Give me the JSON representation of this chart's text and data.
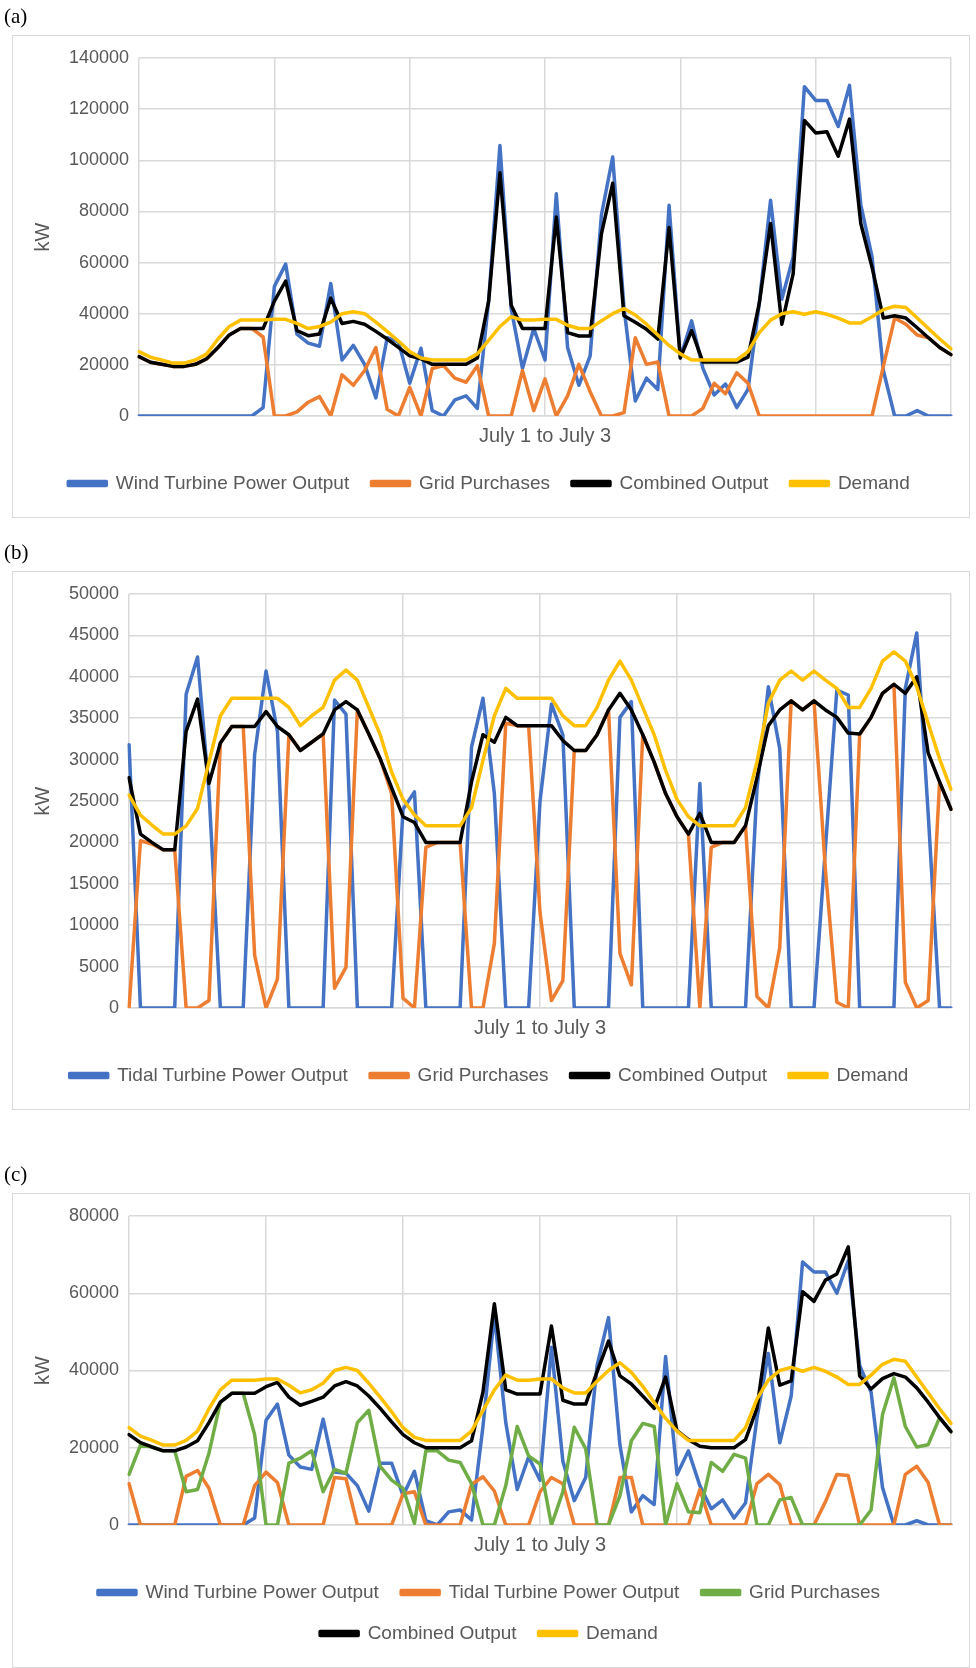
{
  "chart_data": [
    {
      "type": "line",
      "title": "(a)",
      "xlabel": "July 1 to July 3",
      "ylabel": "kW",
      "categories": [
        null,
        null,
        null,
        null,
        null,
        null,
        null,
        null,
        null,
        null,
        null,
        null,
        null,
        null,
        null,
        null,
        null,
        null,
        null,
        null,
        null,
        null,
        null,
        null,
        null,
        null,
        null,
        null,
        null,
        null,
        null,
        null,
        null,
        null,
        null,
        null,
        null,
        null,
        null,
        null,
        null,
        null,
        null,
        null,
        null,
        null,
        null,
        null,
        null,
        null,
        null,
        null,
        null,
        null,
        null,
        null,
        null,
        null,
        null,
        null,
        null,
        null,
        null,
        null,
        null,
        null,
        null,
        null,
        null,
        null,
        null,
        null,
        null
      ],
      "series": [
        {
          "name": "Wind Turbine Power Output",
          "color": "#4472c4",
          "values": [
            0,
            0,
            0,
            0,
            0,
            0,
            0,
            0,
            0,
            0,
            0,
            3300,
            50700,
            59400,
            32000,
            28500,
            27300,
            51800,
            21900,
            27600,
            20200,
            7100,
            30600,
            29000,
            12800,
            26500,
            2100,
            0,
            6300,
            7900,
            3000,
            45000,
            105800,
            42000,
            18600,
            34200,
            21900,
            86900,
            26800,
            12000,
            23500,
            78600,
            101300,
            42400,
            5900,
            14800,
            10400,
            82400,
            22700,
            37200,
            18600,
            8200,
            12500,
            3300,
            10400,
            44100,
            84400,
            45700,
            62200,
            128800,
            123400,
            123400,
            113200,
            129300,
            82700,
            62200,
            17800,
            0,
            0,
            2100,
            0,
            0,
            0
          ]
        },
        {
          "name": "Grid Purchases",
          "color": "#ed7d31",
          "values": [
            23200,
            21000,
            20200,
            19400,
            19400,
            20200,
            22400,
            26800,
            31700,
            34200,
            34200,
            30900,
            0,
            0,
            1600,
            5400,
            7600,
            0,
            16100,
            12000,
            17800,
            26800,
            2600,
            0,
            11200,
            0,
            18600,
            19700,
            14800,
            13200,
            19700,
            0,
            0,
            0,
            17800,
            2100,
            14500,
            0,
            7900,
            20200,
            9500,
            0,
            0,
            1300,
            30600,
            20200,
            21100,
            0,
            0,
            0,
            3000,
            12800,
            8700,
            16900,
            12800,
            0,
            0,
            0,
            0,
            0,
            0,
            0,
            0,
            0,
            0,
            0,
            19400,
            38300,
            35900,
            31700,
            30600,
            26800,
            24000
          ]
        },
        {
          "name": "Combined Output",
          "color": "#000000",
          "values": [
            23200,
            21000,
            20200,
            19400,
            19400,
            20200,
            22400,
            26800,
            31700,
            34200,
            34200,
            34200,
            44900,
            52800,
            33400,
            31400,
            32100,
            46100,
            36200,
            37000,
            35900,
            33100,
            30100,
            26800,
            23500,
            22400,
            20200,
            20200,
            20200,
            20200,
            22700,
            44900,
            95100,
            43300,
            34200,
            34200,
            34200,
            77800,
            32600,
            31300,
            31300,
            71200,
            91000,
            39200,
            36700,
            33900,
            30100,
            73700,
            22700,
            33400,
            21100,
            21100,
            21100,
            21100,
            23000,
            44100,
            75300,
            35900,
            55600,
            115600,
            110700,
            111200,
            101600,
            116100,
            75300,
            58100,
            38300,
            39200,
            38300,
            34500,
            30600,
            26800,
            24000
          ]
        },
        {
          "name": "Demand",
          "color": "#ffc000",
          "values": [
            25200,
            23000,
            21900,
            20700,
            20700,
            21900,
            24300,
            30100,
            35000,
            37500,
            37500,
            37500,
            37800,
            37800,
            36200,
            34200,
            35000,
            36700,
            40000,
            40800,
            40000,
            36700,
            33100,
            29300,
            25200,
            22700,
            21900,
            21900,
            21900,
            21900,
            24300,
            29600,
            35000,
            38800,
            37500,
            37500,
            37800,
            37800,
            35500,
            34200,
            34200,
            37200,
            40000,
            42000,
            39500,
            35900,
            31700,
            27600,
            24300,
            21900,
            21900,
            21900,
            21900,
            21900,
            25200,
            32600,
            37500,
            40000,
            40800,
            39800,
            40800,
            39800,
            38300,
            36400,
            36400,
            38800,
            41600,
            42900,
            42400,
            38300,
            34200,
            30100,
            26300
          ]
        }
      ],
      "ylim": [
        0,
        140000
      ],
      "yticks": [
        0,
        20000,
        40000,
        60000,
        80000,
        100000,
        120000,
        140000
      ],
      "grid": true,
      "legend": "bottom",
      "tick_labels": "y"
    },
    {
      "type": "line",
      "title": "(b)",
      "xlabel": "July 1 to July 3",
      "ylabel": "kW",
      "categories": [
        null,
        null,
        null,
        null,
        null,
        null,
        null,
        null,
        null,
        null,
        null,
        null,
        null,
        null,
        null,
        null,
        null,
        null,
        null,
        null,
        null,
        null,
        null,
        null,
        null,
        null,
        null,
        null,
        null,
        null,
        null,
        null,
        null,
        null,
        null,
        null,
        null,
        null,
        null,
        null,
        null,
        null,
        null,
        null,
        null,
        null,
        null,
        null,
        null,
        null,
        null,
        null,
        null,
        null,
        null,
        null,
        null,
        null,
        null,
        null,
        null,
        null,
        null,
        null,
        null,
        null,
        null,
        null,
        null,
        null,
        null,
        null,
        null
      ],
      "series": [
        {
          "name": "Tidal Turbine Power Output",
          "color": "#4472c4",
          "values": [
            31800,
            0,
            0,
            0,
            0,
            37900,
            42400,
            26200,
            0,
            0,
            0,
            30600,
            40700,
            33400,
            0,
            0,
            0,
            0,
            37200,
            35500,
            0,
            0,
            0,
            0,
            24000,
            26100,
            0,
            0,
            0,
            0,
            31500,
            37400,
            25900,
            0,
            0,
            0,
            25000,
            36700,
            33000,
            0,
            0,
            0,
            0,
            35100,
            37000,
            0,
            0,
            0,
            0,
            0,
            27100,
            0,
            0,
            0,
            0,
            26400,
            38800,
            31300,
            0,
            0,
            0,
            19300,
            38400,
            37800,
            0,
            0,
            0,
            0,
            38600,
            45300,
            23500,
            0,
            0
          ]
        },
        {
          "name": "Grid Purchases",
          "color": "#ed7d31",
          "values": [
            0,
            20200,
            19800,
            19100,
            19100,
            0,
            0,
            900,
            32000,
            34000,
            34000,
            6400,
            0,
            3500,
            33000,
            31100,
            32100,
            33100,
            2400,
            4900,
            36000,
            33100,
            30100,
            25900,
            1200,
            0,
            19400,
            20000,
            20000,
            20000,
            0,
            0,
            7800,
            34400,
            34100,
            34100,
            11500,
            900,
            3300,
            31100,
            31100,
            33000,
            36000,
            6600,
            2800,
            33000,
            29700,
            25900,
            23100,
            21000,
            0,
            19400,
            20000,
            20000,
            22000,
            1400,
            0,
            7300,
            37100,
            36000,
            37100,
            16700,
            700,
            0,
            33000,
            35100,
            38000,
            39100,
            3100,
            0,
            900,
            27300,
            24000
          ]
        },
        {
          "name": "Combined Output",
          "color": "#000000",
          "values": [
            27800,
            21000,
            20000,
            19100,
            19100,
            33400,
            37300,
            27100,
            32000,
            34000,
            34000,
            34000,
            35800,
            34000,
            33000,
            31100,
            32100,
            33100,
            36000,
            37000,
            36000,
            33100,
            30100,
            26600,
            23100,
            22400,
            20000,
            20000,
            20000,
            20000,
            27300,
            33000,
            32100,
            35100,
            34100,
            34100,
            34100,
            34100,
            32300,
            31100,
            31100,
            33000,
            36000,
            38000,
            36000,
            33000,
            29700,
            25900,
            23100,
            21000,
            23500,
            20000,
            20000,
            20000,
            22000,
            27800,
            34100,
            36000,
            37100,
            36000,
            37100,
            36000,
            35100,
            33200,
            33100,
            35100,
            38000,
            39100,
            38000,
            40000,
            30800,
            27300,
            24000
          ]
        },
        {
          "name": "Demand",
          "color": "#ffc000",
          "values": [
            25700,
            23300,
            22100,
            21000,
            21000,
            22000,
            24100,
            29700,
            35300,
            37400,
            37400,
            37400,
            37400,
            37400,
            36300,
            34100,
            35300,
            36300,
            39600,
            40800,
            39600,
            36300,
            33000,
            28500,
            25200,
            23300,
            22000,
            22000,
            22000,
            22000,
            24200,
            29900,
            35300,
            38600,
            37400,
            37400,
            37400,
            37400,
            35300,
            34100,
            34100,
            36300,
            39600,
            41900,
            39600,
            36300,
            33000,
            28700,
            25200,
            23100,
            22000,
            22000,
            22000,
            22000,
            24200,
            29700,
            36800,
            39600,
            40700,
            39600,
            40700,
            39600,
            38600,
            36300,
            36300,
            38600,
            41900,
            43000,
            41900,
            38800,
            34400,
            30100,
            26400
          ]
        }
      ],
      "ylim": [
        0,
        50000
      ],
      "yticks": [
        0,
        5000,
        10000,
        15000,
        20000,
        25000,
        30000,
        35000,
        40000,
        45000,
        50000
      ],
      "grid": true,
      "legend": "bottom",
      "tick_labels": "y"
    },
    {
      "type": "line",
      "title": "(c)",
      "xlabel": "July 1 to July 3",
      "ylabel": "kW",
      "categories": [
        null,
        null,
        null,
        null,
        null,
        null,
        null,
        null,
        null,
        null,
        null,
        null,
        null,
        null,
        null,
        null,
        null,
        null,
        null,
        null,
        null,
        null,
        null,
        null,
        null,
        null,
        null,
        null,
        null,
        null,
        null,
        null,
        null,
        null,
        null,
        null,
        null,
        null,
        null,
        null,
        null,
        null,
        null,
        null,
        null,
        null,
        null,
        null,
        null,
        null,
        null,
        null,
        null,
        null,
        null,
        null,
        null,
        null,
        null,
        null,
        null,
        null,
        null,
        null,
        null,
        null,
        null,
        null,
        null,
        null,
        null,
        null,
        null
      ],
      "series": [
        {
          "name": "Wind Turbine Power Output",
          "color": "#4472c4",
          "values": [
            0,
            0,
            0,
            0,
            0,
            0,
            0,
            0,
            0,
            0,
            0,
            1800,
            27100,
            31300,
            18100,
            15000,
            14400,
            27400,
            13700,
            13400,
            10200,
            3600,
            16000,
            16000,
            7600,
            13900,
            1100,
            0,
            3400,
            3900,
            1300,
            25500,
            54400,
            26500,
            9200,
            17600,
            11600,
            46000,
            16500,
            6300,
            12300,
            41300,
            53700,
            20700,
            3400,
            7600,
            5300,
            43600,
            13100,
            19200,
            10200,
            4200,
            6500,
            1800,
            5700,
            27600,
            44400,
            21300,
            33400,
            68100,
            65500,
            65500,
            60000,
            68400,
            41300,
            34400,
            9700,
            0,
            0,
            1100,
            0,
            0,
            0
          ]
        },
        {
          "name": "Tidal Turbine Power Output",
          "color": "#ed7d31",
          "values": [
            10700,
            0,
            0,
            0,
            0,
            12600,
            14100,
            9500,
            0,
            0,
            0,
            10200,
            13700,
            11000,
            0,
            0,
            0,
            0,
            12300,
            12000,
            0,
            0,
            0,
            0,
            8100,
            8600,
            0,
            0,
            0,
            0,
            10500,
            12500,
            8800,
            0,
            0,
            0,
            8600,
            12300,
            10700,
            0,
            0,
            0,
            0,
            12300,
            12300,
            0,
            0,
            0,
            0,
            0,
            9200,
            0,
            0,
            0,
            0,
            10700,
            13100,
            10500,
            0,
            0,
            0,
            6000,
            13100,
            12800,
            0,
            0,
            0,
            0,
            13100,
            15200,
            11000,
            0,
            0
          ]
        },
        {
          "name": "Grid Purchases",
          "color": "#70ad47",
          "values": [
            13100,
            20700,
            20200,
            19200,
            19200,
            8600,
            9200,
            18600,
            31800,
            34100,
            34100,
            23400,
            0,
            0,
            16000,
            17300,
            19200,
            8600,
            14400,
            13400,
            26500,
            29700,
            15200,
            11600,
            9500,
            400,
            19200,
            19200,
            16800,
            16200,
            10700,
            0,
            0,
            10200,
            25500,
            17900,
            15800,
            0,
            8600,
            25300,
            19700,
            0,
            0,
            7600,
            21800,
            26300,
            25500,
            0,
            10700,
            3400,
            3200,
            16200,
            13900,
            18300,
            17300,
            0,
            0,
            6500,
            7100,
            0,
            0,
            0,
            0,
            0,
            0,
            3900,
            28600,
            38100,
            25500,
            20200,
            20800,
            27800,
            24200
          ]
        },
        {
          "name": "Combined Output",
          "color": "#000000",
          "values": [
            23400,
            21300,
            20200,
            19200,
            19200,
            20200,
            21800,
            26500,
            31800,
            34100,
            34100,
            34100,
            35800,
            36900,
            33100,
            31000,
            32000,
            33100,
            36000,
            37100,
            36000,
            33400,
            30200,
            26700,
            23400,
            21300,
            20000,
            20000,
            20000,
            20000,
            21800,
            34400,
            57300,
            35000,
            33900,
            33900,
            33900,
            51500,
            32300,
            31300,
            31300,
            39700,
            47600,
            38600,
            36500,
            33400,
            30200,
            38300,
            24400,
            22100,
            20400,
            20000,
            20000,
            20000,
            22100,
            30200,
            51000,
            36200,
            37300,
            60400,
            57900,
            63400,
            65000,
            72000,
            38600,
            35200,
            37900,
            39200,
            38300,
            35500,
            31800,
            27800,
            24200
          ]
        },
        {
          "name": "Demand",
          "color": "#ffc000",
          "values": [
            25200,
            23000,
            21900,
            20700,
            20700,
            21900,
            24300,
            30100,
            35000,
            37500,
            37500,
            37500,
            37800,
            37800,
            36200,
            34200,
            35000,
            36700,
            40000,
            40800,
            40000,
            36700,
            33100,
            29300,
            25200,
            22700,
            21900,
            21900,
            21900,
            21900,
            24300,
            29600,
            35000,
            38800,
            37500,
            37500,
            37800,
            37800,
            35500,
            34200,
            34200,
            37200,
            40000,
            42000,
            39500,
            35900,
            31700,
            27600,
            24300,
            21900,
            21900,
            21900,
            21900,
            21900,
            25200,
            32600,
            37500,
            40000,
            40800,
            39800,
            40800,
            39800,
            38300,
            36400,
            36400,
            38800,
            41600,
            42900,
            42400,
            38300,
            34200,
            30100,
            26300
          ]
        }
      ],
      "ylim": [
        0,
        80000
      ],
      "yticks": [
        0,
        20000,
        40000,
        60000,
        80000
      ],
      "grid": true,
      "legend": "bottom",
      "tick_labels": "y"
    }
  ]
}
